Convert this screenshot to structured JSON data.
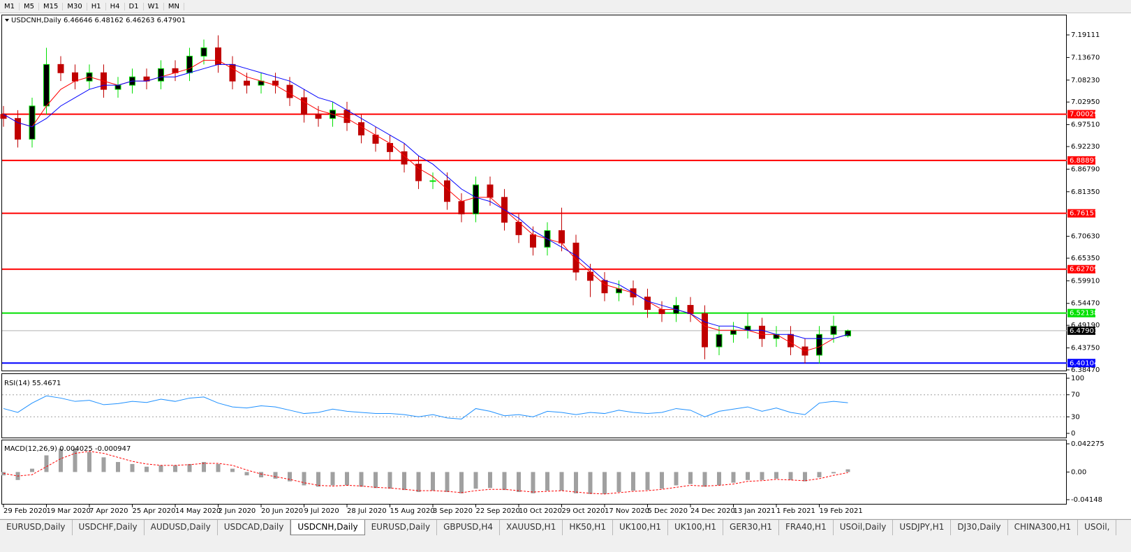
{
  "toolbar": {
    "timeframes": [
      "M1",
      "M5",
      "M15",
      "M30",
      "H1",
      "H4",
      "D1",
      "W1",
      "MN"
    ]
  },
  "tabs": {
    "items": [
      "EURUSD,Daily",
      "USDCHF,Daily",
      "AUDUSD,Daily",
      "USDCAD,Daily",
      "USDCNH,Daily",
      "EURUSD,Daily",
      "GBPUSD,H4",
      "XAUUSD,H1",
      "HK50,H1",
      "UK100,H1",
      "UK100,H1",
      "GER30,H1",
      "FRA40,H1",
      "USOil,Daily",
      "USDJPY,H1",
      "DJ30,Daily",
      "CHINA300,H1",
      "USOil,"
    ],
    "active": 4
  },
  "chart_data": [
    {
      "type": "candlestick",
      "title": "USDCNH,Daily  6.46646 6.48162 6.46263 6.47901",
      "up_color": "#00e000",
      "down_color": "#c00000",
      "xlim": [
        0,
        74
      ],
      "ylim": [
        6.3813,
        7.2382
      ],
      "yticks": [
        {
          "value": 7.19111,
          "label": "7.19111"
        },
        {
          "value": 7.1367,
          "label": "7.13670"
        },
        {
          "value": 7.0823,
          "label": "7.08230"
        },
        {
          "value": 7.0295,
          "label": "7.02950"
        },
        {
          "value": 6.9751,
          "label": "6.97510"
        },
        {
          "value": 6.9223,
          "label": "6.92230"
        },
        {
          "value": 6.8679,
          "label": "6.86790"
        },
        {
          "value": 6.8135,
          "label": "6.81350"
        },
        {
          "value": 6.7063,
          "label": "6.70630"
        },
        {
          "value": 6.6535,
          "label": "6.65350"
        },
        {
          "value": 6.5991,
          "label": "6.59910"
        },
        {
          "value": 6.5447,
          "label": "6.54470"
        },
        {
          "value": 6.4919,
          "label": "6.49190"
        },
        {
          "value": 6.4375,
          "label": "6.43750"
        },
        {
          "value": 6.3847,
          "label": "6.38470"
        }
      ],
      "open": [
        7.0,
        6.99,
        6.94,
        7.02,
        7.12,
        7.1,
        7.08,
        7.1,
        7.06,
        7.07,
        7.09,
        7.08,
        7.11,
        7.1,
        7.14,
        7.16,
        7.12,
        7.08,
        7.07,
        7.08,
        7.07,
        7.04,
        7.0,
        6.99,
        7.01,
        6.98,
        6.95,
        6.93,
        6.91,
        6.88,
        6.84,
        6.84,
        6.79,
        6.76,
        6.83,
        6.8,
        6.74,
        6.71,
        6.68,
        6.72,
        6.69,
        6.62,
        6.6,
        6.57,
        6.58,
        6.56,
        6.53,
        6.52,
        6.54,
        6.52,
        6.44,
        6.47,
        6.48,
        6.49,
        6.46,
        6.47,
        6.44,
        6.42,
        6.47,
        6.46646
      ],
      "high": [
        7.02,
        7.01,
        7.04,
        7.16,
        7.14,
        7.12,
        7.12,
        7.12,
        7.09,
        7.11,
        7.11,
        7.13,
        7.13,
        7.16,
        7.18,
        7.19,
        7.14,
        7.1,
        7.1,
        7.1,
        7.09,
        7.06,
        7.02,
        7.03,
        7.03,
        7.0,
        6.97,
        6.95,
        6.93,
        6.9,
        6.86,
        6.86,
        6.81,
        6.85,
        6.85,
        6.82,
        6.76,
        6.73,
        6.74,
        6.775,
        6.71,
        6.64,
        6.62,
        6.6,
        6.6,
        6.58,
        6.55,
        6.56,
        6.56,
        6.54,
        6.49,
        6.5,
        6.52,
        6.51,
        6.49,
        6.49,
        6.46,
        6.49,
        6.515,
        6.48162
      ],
      "low": [
        6.97,
        6.92,
        6.92,
        7.0,
        7.08,
        7.06,
        7.06,
        7.04,
        7.04,
        7.05,
        7.06,
        7.06,
        7.08,
        7.08,
        7.12,
        7.1,
        7.06,
        7.05,
        7.05,
        7.05,
        7.02,
        6.98,
        6.97,
        6.97,
        6.96,
        6.93,
        6.91,
        6.89,
        6.86,
        6.82,
        6.82,
        6.77,
        6.74,
        6.74,
        6.78,
        6.72,
        6.69,
        6.66,
        6.66,
        6.67,
        6.6,
        6.56,
        6.55,
        6.55,
        6.54,
        6.51,
        6.5,
        6.5,
        6.5,
        6.41,
        6.42,
        6.45,
        6.46,
        6.44,
        6.44,
        6.42,
        6.4,
        6.4,
        6.45,
        6.46263
      ],
      "close": [
        6.99,
        6.94,
        7.02,
        7.12,
        7.1,
        7.08,
        7.1,
        7.06,
        7.07,
        7.09,
        7.08,
        7.11,
        7.1,
        7.14,
        7.16,
        7.12,
        7.08,
        7.07,
        7.08,
        7.07,
        7.04,
        7.0,
        6.99,
        7.01,
        6.98,
        6.95,
        6.93,
        6.91,
        6.88,
        6.84,
        6.84,
        6.79,
        6.76,
        6.83,
        6.8,
        6.74,
        6.71,
        6.68,
        6.72,
        6.69,
        6.62,
        6.6,
        6.57,
        6.58,
        6.56,
        6.53,
        6.52,
        6.54,
        6.52,
        6.44,
        6.47,
        6.48,
        6.49,
        6.46,
        6.47,
        6.44,
        6.42,
        6.47,
        6.49,
        6.47901
      ],
      "series": [
        {
          "color": "#ff0000",
          "values": [
            7.0,
            6.98,
            6.97,
            7.02,
            7.06,
            7.08,
            7.09,
            7.08,
            7.07,
            7.08,
            7.08,
            7.09,
            7.1,
            7.11,
            7.13,
            7.13,
            7.11,
            7.09,
            7.08,
            7.07,
            7.05,
            7.03,
            7.01,
            7.0,
            6.99,
            6.97,
            6.95,
            6.93,
            6.9,
            6.87,
            6.85,
            6.82,
            6.79,
            6.8,
            6.8,
            6.77,
            6.74,
            6.71,
            6.7,
            6.69,
            6.65,
            6.62,
            6.59,
            6.58,
            6.57,
            6.55,
            6.53,
            6.53,
            6.52,
            6.49,
            6.48,
            6.48,
            6.48,
            6.47,
            6.47,
            6.45,
            6.43,
            6.44,
            6.46,
            6.47
          ]
        },
        {
          "color": "#0000ff",
          "values": [
            7.0,
            6.98,
            6.97,
            6.99,
            7.02,
            7.04,
            7.06,
            7.07,
            7.07,
            7.08,
            7.08,
            7.09,
            7.09,
            7.1,
            7.11,
            7.12,
            7.12,
            7.11,
            7.1,
            7.09,
            7.08,
            7.06,
            7.04,
            7.03,
            7.01,
            6.99,
            6.97,
            6.95,
            6.93,
            6.9,
            6.88,
            6.85,
            6.82,
            6.8,
            6.79,
            6.77,
            6.75,
            6.72,
            6.7,
            6.68,
            6.66,
            6.63,
            6.6,
            6.59,
            6.57,
            6.55,
            6.54,
            6.53,
            6.52,
            6.5,
            6.49,
            6.49,
            6.48,
            6.48,
            6.47,
            6.47,
            6.46,
            6.46,
            6.46,
            6.47
          ]
        }
      ],
      "hlines": [
        {
          "value": 7.00029,
          "color": "#ff0000"
        },
        {
          "value": 6.88897,
          "color": "#ff0000"
        },
        {
          "value": 6.76157,
          "color": "#ff0000"
        },
        {
          "value": 6.62709,
          "color": "#ff0000"
        },
        {
          "value": 6.52138,
          "color": "#00e000"
        },
        {
          "value": 6.47901,
          "color": "#000000"
        },
        {
          "value": 6.40104,
          "color": "#0000ff"
        }
      ]
    },
    {
      "type": "line",
      "title": "RSI(14) 55.4671",
      "xlim": [
        0,
        74
      ],
      "ylim": [
        0,
        100
      ],
      "yticks": [
        0,
        30,
        70,
        100
      ],
      "levels": [
        30,
        70
      ],
      "series": [
        {
          "color": "#1e90ff",
          "values": [
            45,
            38,
            55,
            68,
            64,
            58,
            60,
            52,
            54,
            58,
            56,
            62,
            58,
            64,
            66,
            55,
            48,
            46,
            50,
            48,
            42,
            36,
            38,
            44,
            40,
            38,
            36,
            36,
            34,
            30,
            34,
            28,
            26,
            45,
            40,
            32,
            34,
            30,
            40,
            38,
            34,
            38,
            36,
            42,
            38,
            36,
            38,
            45,
            42,
            30,
            40,
            44,
            48,
            40,
            46,
            38,
            34,
            55,
            58,
            55.4671
          ]
        }
      ]
    },
    {
      "type": "macd",
      "title": "MACD(12,26,9) 0.004025 -0.000947",
      "xlim": [
        0,
        74
      ],
      "ylim": [
        -0.04148,
        0.042275
      ],
      "yticks": [
        0.042275,
        {
          "value": 0,
          "label": "0.00"
        },
        -0.04148
      ],
      "xticks": [
        {
          "value": 0,
          "label": "29 Feb 2020"
        },
        {
          "value": 3,
          "label": "19 Mar 2020"
        },
        {
          "value": 6,
          "label": "7 Apr 2020"
        },
        {
          "value": 9,
          "label": "25 Apr 2020"
        },
        {
          "value": 12,
          "label": "14 May 2020"
        },
        {
          "value": 15,
          "label": "2 Jun 2020"
        },
        {
          "value": 18,
          "label": "20 Jun 2020"
        },
        {
          "value": 21,
          "label": "9 Jul 2020"
        },
        {
          "value": 24,
          "label": "28 Jul 2020"
        },
        {
          "value": 27,
          "label": "15 Aug 2020"
        },
        {
          "value": 30,
          "label": "3 Sep 2020"
        },
        {
          "value": 33,
          "label": "22 Sep 2020"
        },
        {
          "value": 36,
          "label": "10 Oct 2020"
        },
        {
          "value": 39,
          "label": "29 Oct 2020"
        },
        {
          "value": 42,
          "label": "17 Nov 2020"
        },
        {
          "value": 45,
          "label": "5 Dec 2020"
        },
        {
          "value": 48,
          "label": "24 Dec 2020"
        },
        {
          "value": 51,
          "label": "13 Jan 2021"
        },
        {
          "value": 54,
          "label": "1 Feb 2021"
        },
        {
          "value": 57,
          "label": "19 Feb 2021"
        }
      ],
      "histogram": {
        "color": "#a0a0a0",
        "values": [
          -0.005,
          -0.012,
          0.005,
          0.025,
          0.035,
          0.035,
          0.03,
          0.022,
          0.015,
          0.012,
          0.008,
          0.01,
          0.01,
          0.012,
          0.015,
          0.012,
          0.005,
          -0.005,
          -0.008,
          -0.01,
          -0.014,
          -0.02,
          -0.022,
          -0.02,
          -0.02,
          -0.022,
          -0.024,
          -0.025,
          -0.027,
          -0.03,
          -0.028,
          -0.03,
          -0.032,
          -0.025,
          -0.024,
          -0.027,
          -0.03,
          -0.032,
          -0.028,
          -0.028,
          -0.032,
          -0.033,
          -0.033,
          -0.03,
          -0.028,
          -0.027,
          -0.025,
          -0.02,
          -0.018,
          -0.022,
          -0.02,
          -0.016,
          -0.012,
          -0.012,
          -0.01,
          -0.012,
          -0.014,
          -0.008,
          -0.002,
          0.004025
        ]
      },
      "signal": {
        "color": "#ff0000",
        "values": [
          -0.002,
          -0.006,
          -0.004,
          0.008,
          0.02,
          0.028,
          0.031,
          0.028,
          0.022,
          0.016,
          0.012,
          0.01,
          0.01,
          0.011,
          0.013,
          0.013,
          0.01,
          0.003,
          -0.003,
          -0.007,
          -0.011,
          -0.016,
          -0.02,
          -0.021,
          -0.02,
          -0.021,
          -0.023,
          -0.024,
          -0.026,
          -0.028,
          -0.028,
          -0.029,
          -0.031,
          -0.028,
          -0.026,
          -0.026,
          -0.028,
          -0.03,
          -0.029,
          -0.028,
          -0.03,
          -0.032,
          -0.033,
          -0.031,
          -0.029,
          -0.028,
          -0.026,
          -0.023,
          -0.02,
          -0.021,
          -0.02,
          -0.018,
          -0.014,
          -0.013,
          -0.011,
          -0.012,
          -0.013,
          -0.01,
          -0.005,
          -0.000947
        ]
      }
    }
  ]
}
